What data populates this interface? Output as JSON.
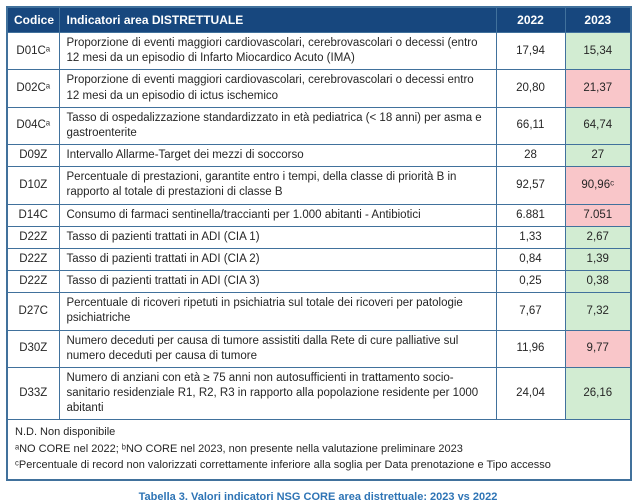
{
  "colors": {
    "header-bg": "#17477E",
    "header-text": "#FFFFFF",
    "border": "#41719C",
    "better-bg": "#D2ECD2",
    "worse-bg": "#F9C6C9",
    "text": "#262626",
    "caption": "#2E74B5"
  },
  "table": {
    "columns": {
      "code": "Codice",
      "name": "Indicatori area DISTRETTUALE",
      "y2022": "2022",
      "y2023": "2023"
    },
    "rows": [
      {
        "code": "D01Cᵃ",
        "description": "Proporzione di eventi maggiori cardiovascolari, cerebrovascolari o decessi (entro 12 mesi da un episodio di Infarto Miocardico Acuto (IMA)",
        "v2022": "17,94",
        "v2023": "15,34",
        "status": "better"
      },
      {
        "code": "D02Cᵃ",
        "description": "Proporzione di eventi maggiori cardiovascolari, cerebrovascolari o decessi entro 12 mesi da un episodio di ictus ischemico",
        "v2022": "20,80",
        "v2023": "21,37",
        "status": "worse"
      },
      {
        "code": "D04Cᵃ",
        "description": "Tasso di ospedalizzazione standardizzato in età pediatrica (< 18 anni) per asma e gastroenterite",
        "v2022": "66,11",
        "v2023": "64,74",
        "status": "better"
      },
      {
        "code": "D09Z",
        "description": "Intervallo Allarme-Target dei mezzi di soccorso",
        "v2022": "28",
        "v2023": "27",
        "status": "better"
      },
      {
        "code": "D10Z",
        "description": "Percentuale di prestazioni, garantite entro i tempi, della classe di priorità B in rapporto al totale di prestazioni di classe B",
        "v2022": "92,57",
        "v2023": "90,96ᶜ",
        "status": "worse"
      },
      {
        "code": "D14C",
        "description": "Consumo di farmaci sentinella/traccianti per 1.000 abitanti - Antibiotici",
        "v2022": "6.881",
        "v2023": "7.051",
        "status": "worse"
      },
      {
        "code": "D22Z",
        "description": "Tasso di pazienti trattati in ADI (CIA 1)",
        "v2022": "1,33",
        "v2023": "2,67",
        "status": "better"
      },
      {
        "code": "D22Z",
        "description": "Tasso di pazienti trattati in ADI (CIA 2)",
        "v2022": "0,84",
        "v2023": "1,39",
        "status": "better"
      },
      {
        "code": "D22Z",
        "description": "Tasso di pazienti trattati in ADI (CIA 3)",
        "v2022": "0,25",
        "v2023": "0,38",
        "status": "better"
      },
      {
        "code": "D27C",
        "description": "Percentuale di ricoveri ripetuti in psichiatria sul totale dei ricoveri per patologie psichiatriche",
        "v2022": "7,67",
        "v2023": "7,32",
        "status": "better"
      },
      {
        "code": "D30Z",
        "description": "Numero deceduti per causa di tumore assistiti dalla Rete di cure palliative sul numero deceduti per causa di tumore",
        "v2022": "11,96",
        "v2023": "9,77",
        "status": "worse"
      },
      {
        "code": "D33Z",
        "description": "Numero di anziani con età ≥ 75 anni non autosufficienti in trattamento socio-sanitario residenziale R1, R2, R3 in rapporto alla popolazione residente per 1000 abitanti",
        "v2022": "24,04",
        "v2023": "26,16",
        "status": "better"
      }
    ],
    "notes": [
      "N.D. Non disponibile",
      "ᵃNO CORE nel 2022; ᵇNO CORE nel 2023, non presente nella valutazione preliminare 2023",
      "ᶜPercentuale di record non valorizzati correttamente inferiore alla soglia per Data prenotazione e Tipo accesso"
    ]
  },
  "caption": "Tabella 3. Valori indicatori NSG CORE area distrettuale: 2023 vs 2022"
}
